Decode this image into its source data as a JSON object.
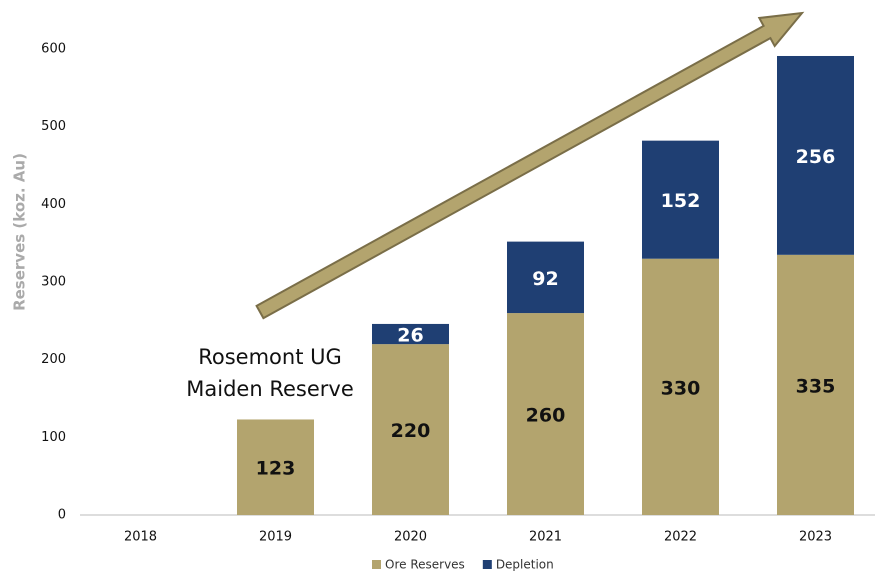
{
  "chart_data": {
    "type": "stacked_bar",
    "ylabel": "Reserves (koz. Au)",
    "categories": [
      "2018",
      "2019",
      "2020",
      "2021",
      "2022",
      "2023"
    ],
    "series": [
      {
        "name": "Ore Reserves",
        "color": "#b3a46e",
        "values": [
          null,
          123,
          220,
          260,
          330,
          335
        ]
      },
      {
        "name": "Depletion",
        "color": "#1f3f73",
        "values": [
          null,
          null,
          26,
          92,
          152,
          256
        ]
      }
    ],
    "annotation": [
      "Rosemont UG",
      "Maiden Reserve"
    ],
    "ylim": [
      0,
      600
    ],
    "yticks": [
      0,
      100,
      200,
      300,
      400,
      500,
      600
    ],
    "grid": false,
    "legend": "bottom"
  }
}
